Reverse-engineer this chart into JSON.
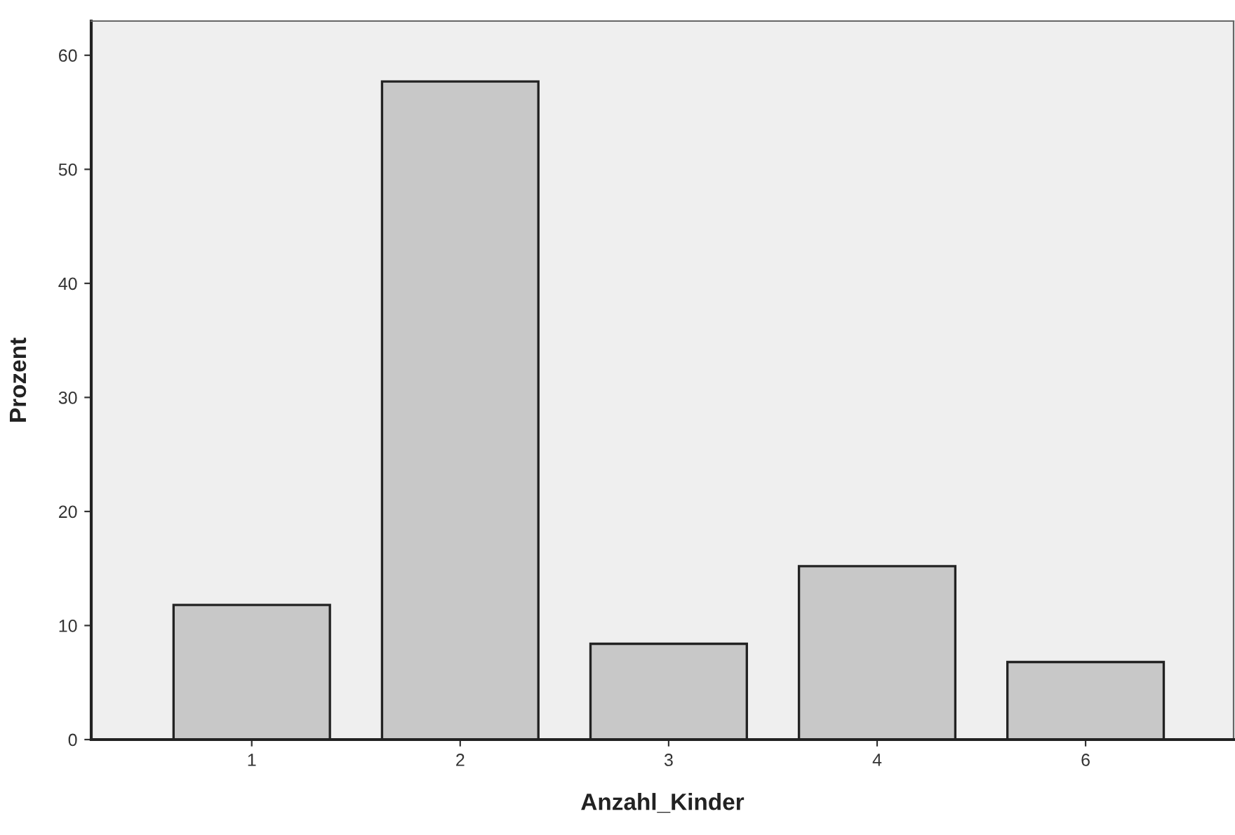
{
  "chart_data": {
    "type": "bar",
    "xlabel": "Anzahl_Kinder",
    "ylabel": "Prozent",
    "categories": [
      "1",
      "2",
      "3",
      "4",
      "6"
    ],
    "values": [
      11.8,
      57.7,
      8.4,
      15.2,
      6.8
    ],
    "color": "#c8c8c8",
    "ylim": [
      0,
      63
    ],
    "yticks": [
      0,
      10,
      20,
      30,
      40,
      50,
      60
    ],
    "grid": false,
    "legend": false
  }
}
